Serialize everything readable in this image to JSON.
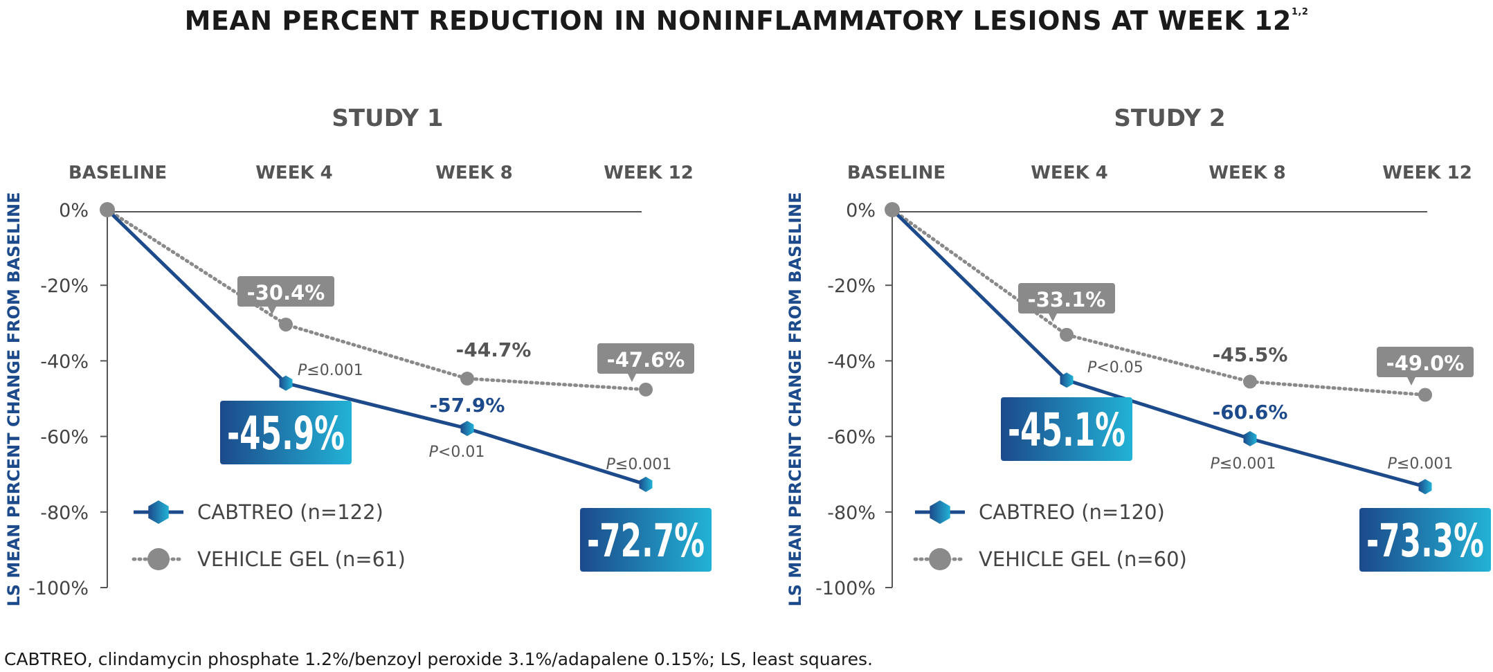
{
  "title": "MEAN PERCENT REDUCTION IN NONINFLAMMATORY LESIONS AT WEEK 12",
  "title_refs": "1,2",
  "footnote": "CABTREO, clindamycin phosphate 1.2%/benzoyl peroxide 3.1%/adapalene 0.15%; LS, least squares.",
  "colors": {
    "cabtreo": "#1c4a8a",
    "cabtreo_gradient_end": "#22b2d6",
    "vehicle": "#8a8a8a",
    "axis": "#555555",
    "ylabel": "#1c4a8a"
  },
  "chart_data": [
    {
      "type": "line",
      "title": "STUDY 1",
      "x": [
        "BASELINE",
        "WEEK 4",
        "WEEK 8",
        "WEEK 12"
      ],
      "ylabel": "LS MEAN PERCENT CHANGE FROM BASELINE",
      "yticks": [
        "0%",
        "-20%",
        "-40%",
        "-60%",
        "-80%",
        "-100%"
      ],
      "ylim": [
        -100,
        0
      ],
      "series": [
        {
          "name": "CABTREO (n=122)",
          "values": [
            0,
            -45.9,
            -57.9,
            -72.7
          ],
          "labels": [
            "",
            "-45.9%",
            "-57.9%",
            "-72.7%"
          ]
        },
        {
          "name": "VEHICLE GEL (n=61)",
          "values": [
            0,
            -30.4,
            -44.7,
            -47.6
          ],
          "labels": [
            "",
            "-30.4%",
            "-44.7%",
            "-47.6%"
          ]
        }
      ],
      "pvalues": [
        "",
        "P≤0.001",
        "P<0.01",
        "P≤0.001"
      ],
      "legend": "bottom-left"
    },
    {
      "type": "line",
      "title": "STUDY 2",
      "x": [
        "BASELINE",
        "WEEK 4",
        "WEEK 8",
        "WEEK 12"
      ],
      "ylabel": "LS MEAN PERCENT CHANGE FROM BASELINE",
      "yticks": [
        "0%",
        "-20%",
        "-40%",
        "-60%",
        "-80%",
        "-100%"
      ],
      "ylim": [
        -100,
        0
      ],
      "series": [
        {
          "name": "CABTREO (n=120)",
          "values": [
            0,
            -45.1,
            -60.6,
            -73.3
          ],
          "labels": [
            "",
            "-45.1%",
            "-60.6%",
            "-73.3%"
          ]
        },
        {
          "name": "VEHICLE GEL (n=60)",
          "values": [
            0,
            -33.1,
            -45.5,
            -49.0
          ],
          "labels": [
            "",
            "-33.1%",
            "-45.5%",
            "-49.0%"
          ]
        }
      ],
      "pvalues": [
        "",
        "P<0.05",
        "P≤0.001",
        "P≤0.001"
      ],
      "legend": "bottom-left"
    }
  ]
}
